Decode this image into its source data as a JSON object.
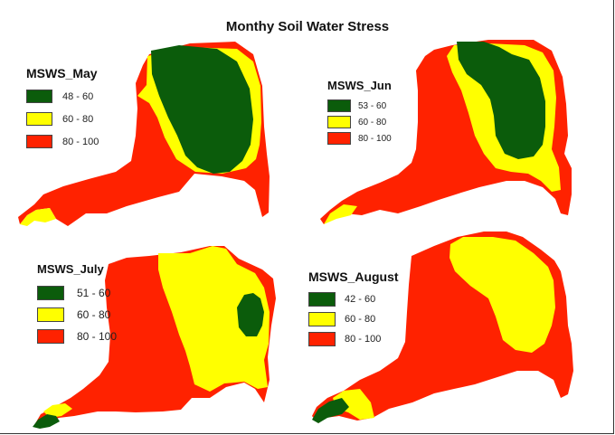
{
  "title": "Monthy Soil Water Stress",
  "colors": {
    "green": "#0b5c0b",
    "yellow": "#ffff00",
    "red": "#ff2200",
    "border": "#444444"
  },
  "legends": {
    "may": {
      "title": "MSWS_May",
      "items": [
        {
          "label": "48 - 60",
          "color": "green"
        },
        {
          "label": "60 - 80",
          "color": "yellow"
        },
        {
          "label": "80 - 100",
          "color": "red"
        }
      ]
    },
    "jun": {
      "title": "MSWS_Jun",
      "items": [
        {
          "label": "53 - 60",
          "color": "green"
        },
        {
          "label": "60 - 80",
          "color": "yellow"
        },
        {
          "label": "80 - 100",
          "color": "red"
        }
      ]
    },
    "july": {
      "title": "MSWS_July",
      "items": [
        {
          "label": "51 - 60",
          "color": "green"
        },
        {
          "label": "60 - 80",
          "color": "yellow"
        },
        {
          "label": "80 - 100",
          "color": "red"
        }
      ]
    },
    "aug": {
      "title": "MSWS_August",
      "items": [
        {
          "label": "42 - 60",
          "color": "green"
        },
        {
          "label": "60 - 80",
          "color": "yellow"
        },
        {
          "label": "80 - 100",
          "color": "red"
        }
      ]
    }
  }
}
